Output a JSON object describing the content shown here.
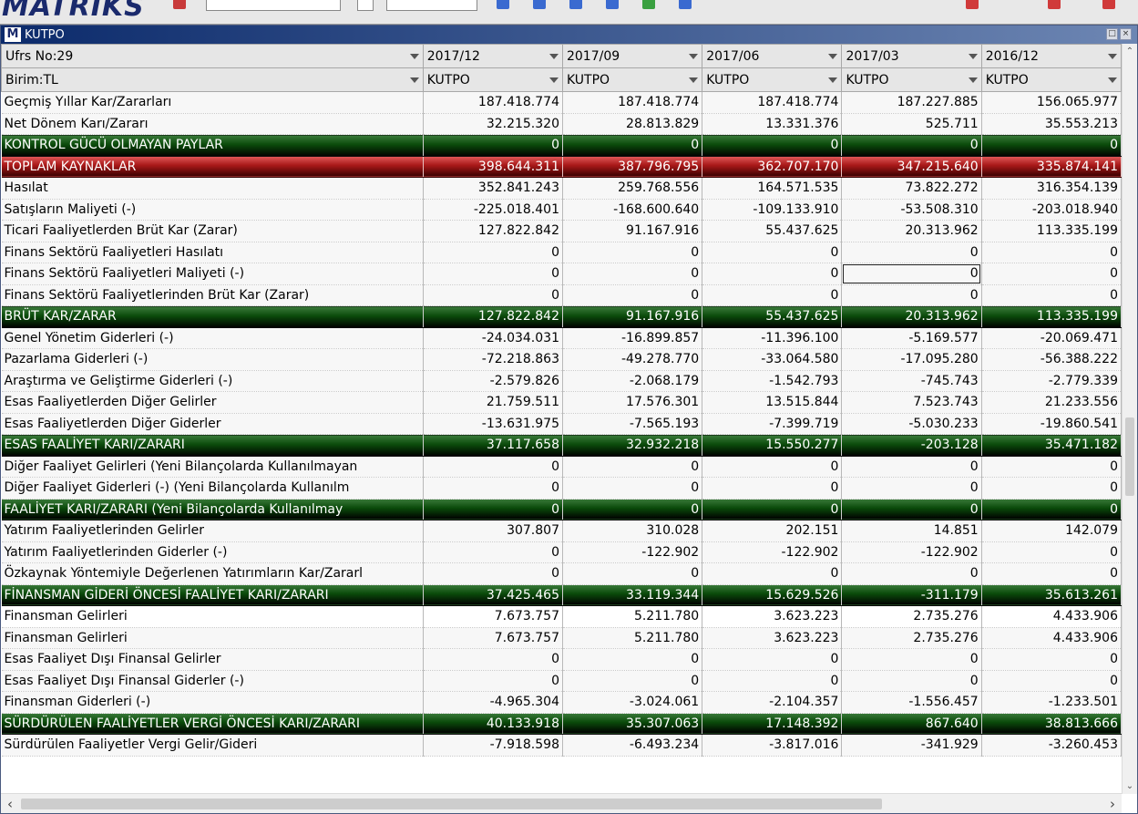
{
  "app": {
    "logo": "MATRIKS"
  },
  "window": {
    "title": "KUTPO",
    "logo_letter": "M"
  },
  "header": {
    "row1_label": "Ufrs No:29",
    "row2_label": "Birim:TL",
    "periods": [
      "2017/12",
      "2017/09",
      "2017/06",
      "2017/03",
      "2016/12"
    ],
    "codes": [
      "KUTPO",
      "KUTPO",
      "KUTPO",
      "KUTPO",
      "KUTPO"
    ]
  },
  "rows": [
    {
      "label": "Geçmiş Yıllar Kar/Zararları",
      "style": "normal",
      "values": [
        "187.418.774",
        "187.418.774",
        "187.418.774",
        "187.227.885",
        "156.065.977"
      ]
    },
    {
      "label": "Net Dönem Karı/Zararı",
      "style": "normal",
      "values": [
        "32.215.320",
        "28.813.829",
        "13.331.376",
        "525.711",
        "35.553.213"
      ]
    },
    {
      "label": "KONTROL GÜCÜ OLMAYAN PAYLAR",
      "style": "green",
      "values": [
        "0",
        "0",
        "0",
        "0",
        "0"
      ]
    },
    {
      "label": "TOPLAM KAYNAKLAR",
      "style": "red",
      "values": [
        "398.644.311",
        "387.796.795",
        "362.707.170",
        "347.215.640",
        "335.874.141"
      ]
    },
    {
      "label": "Hasılat",
      "style": "normal",
      "values": [
        "352.841.243",
        "259.768.556",
        "164.571.535",
        "73.822.272",
        "316.354.139"
      ]
    },
    {
      "label": "Satışların Maliyeti (-)",
      "style": "normal",
      "values": [
        "-225.018.401",
        "-168.600.640",
        "-109.133.910",
        "-53.508.310",
        "-203.018.940"
      ]
    },
    {
      "label": "Ticari Faaliyetlerden Brüt Kar (Zarar)",
      "style": "normal",
      "values": [
        "127.822.842",
        "91.167.916",
        "55.437.625",
        "20.313.962",
        "113.335.199"
      ]
    },
    {
      "label": "Finans Sektörü Faaliyetleri Hasılatı",
      "style": "normal",
      "values": [
        "0",
        "0",
        "0",
        "0",
        "0"
      ]
    },
    {
      "label": "Finans Sektörü Faaliyetleri Maliyeti  (-)",
      "style": "normal",
      "values": [
        "0",
        "0",
        "0",
        "0",
        "0"
      ],
      "focus": 3
    },
    {
      "label": "Finans Sektörü Faaliyetlerinden Brüt Kar (Zarar)",
      "style": "normal",
      "values": [
        "0",
        "0",
        "0",
        "0",
        "0"
      ]
    },
    {
      "label": "BRÜT KAR/ZARAR",
      "style": "green",
      "values": [
        "127.822.842",
        "91.167.916",
        "55.437.625",
        "20.313.962",
        "113.335.199"
      ]
    },
    {
      "label": "Genel Yönetim Giderleri (-)",
      "style": "normal",
      "values": [
        "-24.034.031",
        "-16.899.857",
        "-11.396.100",
        "-5.169.577",
        "-20.069.471"
      ]
    },
    {
      "label": "Pazarlama Giderleri (-)",
      "style": "normal",
      "values": [
        "-72.218.863",
        "-49.278.770",
        "-33.064.580",
        "-17.095.280",
        "-56.388.222"
      ]
    },
    {
      "label": "Araştırma ve Geliştirme Giderleri (-)",
      "style": "normal",
      "values": [
        "-2.579.826",
        "-2.068.179",
        "-1.542.793",
        "-745.743",
        "-2.779.339"
      ]
    },
    {
      "label": "Esas Faaliyetlerden Diğer Gelirler",
      "style": "normal",
      "values": [
        "21.759.511",
        "17.576.301",
        "13.515.844",
        "7.523.743",
        "21.233.556"
      ]
    },
    {
      "label": "Esas Faaliyetlerden Diğer Giderler",
      "style": "normal",
      "values": [
        "-13.631.975",
        "-7.565.193",
        "-7.399.719",
        "-5.030.233",
        "-19.860.541"
      ]
    },
    {
      "label": "ESAS FAALİYET KARI/ZARARI",
      "style": "green",
      "values": [
        "37.117.658",
        "32.932.218",
        "15.550.277",
        "-203.128",
        "35.471.182"
      ]
    },
    {
      "label": "Diğer Faaliyet Gelirleri    (Yeni Bilançolarda Kullanılmayan",
      "style": "normal",
      "values": [
        "0",
        "0",
        "0",
        "0",
        "0"
      ]
    },
    {
      "label": "Diğer Faaliyet Giderleri (-)      (Yeni Bilançolarda Kullanılm",
      "style": "normal",
      "values": [
        "0",
        "0",
        "0",
        "0",
        "0"
      ]
    },
    {
      "label": "FAALİYET KARI/ZARARI      (Yeni Bilançolarda Kullanılmay",
      "style": "green",
      "values": [
        "0",
        "0",
        "0",
        "0",
        "0"
      ]
    },
    {
      "label": "Yatırım Faaliyetlerinden Gelirler",
      "style": "normal",
      "values": [
        "307.807",
        "310.028",
        "202.151",
        "14.851",
        "142.079"
      ]
    },
    {
      "label": "Yatırım Faaliyetlerinden Giderler (-)",
      "style": "normal",
      "values": [
        "0",
        "-122.902",
        "-122.902",
        "-122.902",
        "0"
      ]
    },
    {
      "label": "Özkaynak Yöntemiyle Değerlenen Yatırımların Kar/Zararl",
      "style": "normal",
      "values": [
        "0",
        "0",
        "0",
        "0",
        "0"
      ]
    },
    {
      "label": "FİNANSMAN GİDERİ ÖNCESİ FAALİYET KARI/ZARARI",
      "style": "green",
      "values": [
        "37.425.465",
        "33.119.344",
        "15.629.526",
        "-311.179",
        "35.613.261"
      ]
    },
    {
      "label": "Finansman Gelirleri",
      "style": "sel",
      "values": [
        "7.673.757",
        "5.211.780",
        "3.623.223",
        "2.735.276",
        "4.433.906"
      ]
    },
    {
      "label": "Finansman Gelirleri",
      "style": "normal",
      "values": [
        "7.673.757",
        "5.211.780",
        "3.623.223",
        "2.735.276",
        "4.433.906"
      ]
    },
    {
      "label": "Esas Faaliyet Dışı Finansal Gelirler",
      "style": "normal",
      "values": [
        "0",
        "0",
        "0",
        "0",
        "0"
      ]
    },
    {
      "label": "Esas Faaliyet Dışı Finansal Giderler (-)",
      "style": "normal",
      "values": [
        "0",
        "0",
        "0",
        "0",
        "0"
      ]
    },
    {
      "label": "Finansman Giderleri (-)",
      "style": "normal",
      "values": [
        "-4.965.304",
        "-3.024.061",
        "-2.104.357",
        "-1.556.457",
        "-1.233.501"
      ]
    },
    {
      "label": "SÜRDÜRÜLEN FAALİYETLER VERGİ ÖNCESİ KARI/ZARARI",
      "style": "green",
      "values": [
        "40.133.918",
        "35.307.063",
        "17.148.392",
        "867.640",
        "38.813.666"
      ]
    },
    {
      "label": "Sürdürülen Faaliyetler Vergi Gelir/Gideri",
      "style": "normal",
      "values": [
        "-7.918.598",
        "-6.493.234",
        "-3.817.016",
        "-341.929",
        "-3.260.453"
      ]
    }
  ],
  "colors": {
    "green_row": "#0a4a0a",
    "red_row": "#a81818",
    "title_bar": "#0b2a6b"
  },
  "icons": {
    "dropdown": "chevron-down-icon",
    "scroll_left": "arrow-left-icon",
    "scroll_right": "arrow-right-icon",
    "scroll_up": "arrow-up-icon",
    "scroll_down": "arrow-down-icon"
  }
}
